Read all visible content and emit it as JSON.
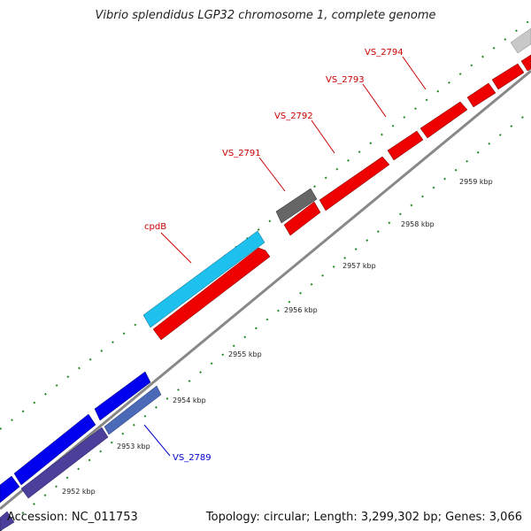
{
  "title": "Vibrio splendidus LGP32 chromosome 1, complete genome",
  "footer": {
    "accession": "Accession: NC_011753",
    "topology": "Topology: circular; Length: 3,299,302 bp; Genes: 3,066"
  },
  "ticks": [
    "2952 kbp",
    "2953 kbp",
    "2954 kbp",
    "2955 kbp",
    "2956 kbp",
    "2957 kbp",
    "2958 kbp",
    "2959 kbp"
  ],
  "labels": [
    {
      "text": "VS_2789",
      "color": "#0000cc"
    },
    {
      "text": "cpdB",
      "color": "#cc0000"
    },
    {
      "text": "VS_2791",
      "color": "#cc0000"
    },
    {
      "text": "VS_2792",
      "color": "#cc0000"
    },
    {
      "text": "VS_2793",
      "color": "#cc0000"
    },
    {
      "text": "VS_2794",
      "color": "#cc0000"
    }
  ],
  "colors": {
    "reverse_strand": "#0000ee",
    "reverse_strand_dark": "#4a3f9a",
    "forward_strand": "#ee0000",
    "feature_cyan": "#1ec0ee",
    "feature_gray": "#666666",
    "feature_lightgray": "#c8c8c8",
    "backbone": "#888888",
    "tick_dots": "#228822"
  }
}
